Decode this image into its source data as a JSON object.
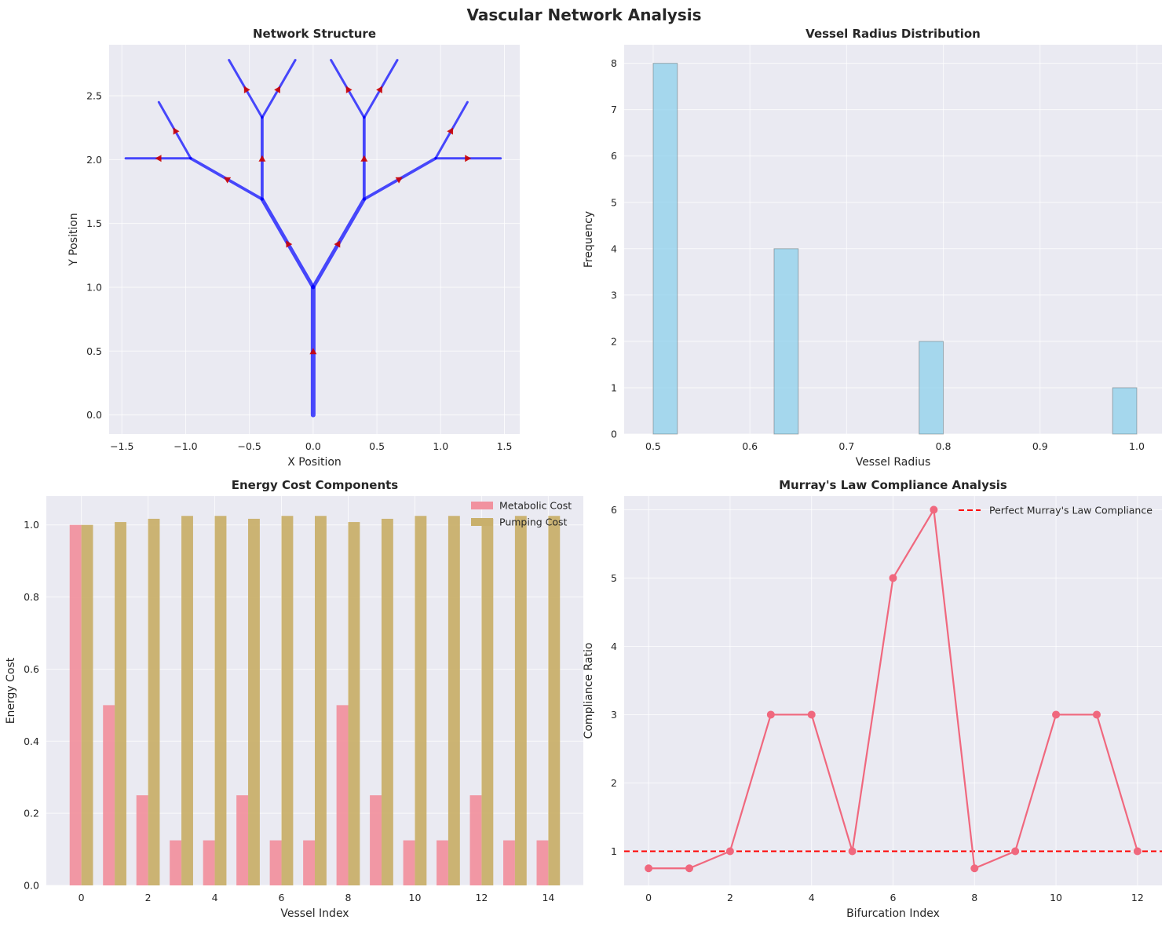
{
  "figure": {
    "title": "Vascular Network Analysis"
  },
  "chart_data": [
    {
      "type": "network",
      "title": "Network Structure",
      "xlabel": "X Position",
      "ylabel": "Y Position",
      "xlim": [
        -1.6,
        1.62
      ],
      "ylim": [
        -0.15,
        2.9
      ],
      "xticks": [
        -1.5,
        -1.0,
        -0.5,
        0.0,
        0.5,
        1.0,
        1.5
      ],
      "xtick_labels": [
        "−1.5",
        "−1.0",
        "−0.5",
        "0.0",
        "0.5",
        "1.0",
        "1.5"
      ],
      "yticks": [
        0.0,
        0.5,
        1.0,
        1.5,
        2.0,
        2.5
      ],
      "ytick_labels": [
        "0.0",
        "0.5",
        "1.0",
        "1.5",
        "2.0",
        "2.5"
      ],
      "segments": [
        {
          "from": [
            0,
            0
          ],
          "to": [
            0,
            1
          ],
          "radius": 1.0
        },
        {
          "from": [
            0,
            1
          ],
          "to": [
            -0.4,
            1.69
          ],
          "radius": 0.8
        },
        {
          "from": [
            0,
            1
          ],
          "to": [
            0.4,
            1.69
          ],
          "radius": 0.8
        },
        {
          "from": [
            -0.4,
            1.69
          ],
          "to": [
            -0.96,
            2.01
          ],
          "radius": 0.63
        },
        {
          "from": [
            -0.4,
            1.69
          ],
          "to": [
            -0.4,
            2.33
          ],
          "radius": 0.63
        },
        {
          "from": [
            0.4,
            1.69
          ],
          "to": [
            0.4,
            2.33
          ],
          "radius": 0.63
        },
        {
          "from": [
            0.4,
            1.69
          ],
          "to": [
            0.96,
            2.01
          ],
          "radius": 0.63
        },
        {
          "from": [
            -0.96,
            2.01
          ],
          "to": [
            -1.47,
            2.01
          ],
          "radius": 0.5
        },
        {
          "from": [
            -0.96,
            2.01
          ],
          "to": [
            -1.21,
            2.45
          ],
          "radius": 0.5
        },
        {
          "from": [
            -0.4,
            2.33
          ],
          "to": [
            -0.66,
            2.78
          ],
          "radius": 0.5
        },
        {
          "from": [
            -0.4,
            2.33
          ],
          "to": [
            -0.14,
            2.78
          ],
          "radius": 0.5
        },
        {
          "from": [
            0.4,
            2.33
          ],
          "to": [
            0.14,
            2.78
          ],
          "radius": 0.5
        },
        {
          "from": [
            0.4,
            2.33
          ],
          "to": [
            0.66,
            2.78
          ],
          "radius": 0.5
        },
        {
          "from": [
            0.96,
            2.01
          ],
          "to": [
            1.21,
            2.45
          ],
          "radius": 0.5
        },
        {
          "from": [
            0.96,
            2.01
          ],
          "to": [
            1.47,
            2.01
          ],
          "radius": 0.5
        }
      ]
    },
    {
      "type": "bar",
      "title": "Vessel Radius Distribution",
      "xlabel": "Vessel Radius",
      "ylabel": "Frequency",
      "xlim": [
        0.47,
        1.026
      ],
      "ylim": [
        0,
        8.4
      ],
      "xticks": [
        0.5,
        0.6,
        0.7,
        0.8,
        0.9,
        1.0
      ],
      "xtick_labels": [
        "0.5",
        "0.6",
        "0.7",
        "0.8",
        "0.9",
        "1.0"
      ],
      "yticks": [
        0,
        1,
        2,
        3,
        4,
        5,
        6,
        7,
        8
      ],
      "ytick_labels": [
        "0",
        "1",
        "2",
        "3",
        "4",
        "5",
        "6",
        "7",
        "8"
      ],
      "bin_width": 0.025,
      "bins": [
        {
          "left": 0.5,
          "count": 8
        },
        {
          "left": 0.625,
          "count": 4
        },
        {
          "left": 0.775,
          "count": 2
        },
        {
          "left": 0.975,
          "count": 1
        }
      ]
    },
    {
      "type": "bar",
      "title": "Energy Cost Components",
      "xlabel": "Vessel Index",
      "ylabel": "Energy Cost",
      "xlim": [
        -1.05,
        15.05
      ],
      "ylim": [
        0,
        1.08
      ],
      "xticks": [
        0,
        2,
        4,
        6,
        8,
        10,
        12,
        14
      ],
      "xtick_labels": [
        "0",
        "2",
        "4",
        "6",
        "8",
        "10",
        "12",
        "14"
      ],
      "yticks": [
        0.0,
        0.2,
        0.4,
        0.6,
        0.8,
        1.0
      ],
      "ytick_labels": [
        "0.0",
        "0.2",
        "0.4",
        "0.6",
        "0.8",
        "1.0"
      ],
      "categories": [
        0,
        1,
        2,
        3,
        4,
        5,
        6,
        7,
        8,
        9,
        10,
        11,
        12,
        13,
        14
      ],
      "series": [
        {
          "name": "Metabolic Cost",
          "color": "#f1929f",
          "values": [
            1.0,
            0.5,
            0.25,
            0.125,
            0.125,
            0.25,
            0.125,
            0.125,
            0.5,
            0.25,
            0.125,
            0.125,
            0.25,
            0.125,
            0.125
          ]
        },
        {
          "name": "Pumping Cost",
          "color": "#c9b06c",
          "values": [
            1.0,
            1.008,
            1.017,
            1.025,
            1.025,
            1.017,
            1.025,
            1.025,
            1.008,
            1.017,
            1.025,
            1.025,
            1.017,
            1.025,
            1.025
          ]
        }
      ]
    },
    {
      "type": "line",
      "title": "Murray's Law Compliance Analysis",
      "xlabel": "Bifurcation Index",
      "ylabel": "Compliance Ratio",
      "xlim": [
        -0.6,
        12.6
      ],
      "ylim": [
        0.5,
        6.2
      ],
      "xticks": [
        0,
        2,
        4,
        6,
        8,
        10,
        12
      ],
      "xtick_labels": [
        "0",
        "2",
        "4",
        "6",
        "8",
        "10",
        "12"
      ],
      "yticks": [
        1,
        2,
        3,
        4,
        5,
        6
      ],
      "ytick_labels": [
        "1",
        "2",
        "3",
        "4",
        "5",
        "6"
      ],
      "x": [
        0,
        1,
        2,
        3,
        4,
        5,
        6,
        7,
        8,
        9,
        10,
        11,
        12
      ],
      "y": [
        0.75,
        0.75,
        1.0,
        3.0,
        3.0,
        1.0,
        5.0,
        6.0,
        0.75,
        1.0,
        3.0,
        3.0,
        1.0
      ],
      "line_color": "#f0687e",
      "reference": {
        "name": "Perfect Murray's Law Compliance",
        "value": 1.0,
        "color": "#ff0000"
      }
    }
  ]
}
